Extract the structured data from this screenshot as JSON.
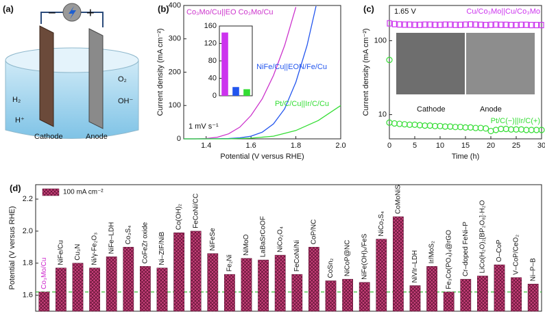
{
  "schematic": {
    "panel_label": "(a)",
    "minus": "−",
    "plus": "+",
    "h2": "H₂",
    "hplus": "H⁺",
    "o2": "O₂",
    "ohminus": "OH⁻",
    "cathode": "Cathode",
    "anode": "Anode"
  },
  "chart_data": [
    {
      "type": "line",
      "panel_label": "(b)",
      "xlabel": "Potential (V versus RHE)",
      "ylabel": "Current density (mA cm⁻²)",
      "xlim": [
        1.3,
        2.0
      ],
      "xticks": [
        1.4,
        1.6,
        1.8,
        {
          "value": 2.0,
          "label": "2.0"
        }
      ],
      "ylim": [
        0,
        400
      ],
      "yticks": [
        0,
        100,
        200,
        300,
        400
      ],
      "annotations": [
        "1 mV s⁻¹"
      ],
      "series": [
        {
          "name": "Co₃Mo/Cu||EO Co₃Mo/Cu",
          "color": "#cc33cc",
          "x": [
            1.3,
            1.35,
            1.4,
            1.45,
            1.5,
            1.55,
            1.6,
            1.65,
            1.7,
            1.75,
            1.8
          ],
          "values": [
            0,
            0,
            1,
            5,
            15,
            35,
            70,
            120,
            190,
            280,
            395
          ]
        },
        {
          "name": "NiFe/Cu||EON/Fe/Cu",
          "color": "#2255ee",
          "x": [
            1.3,
            1.4,
            1.5,
            1.55,
            1.6,
            1.65,
            1.7,
            1.75,
            1.8,
            1.85,
            1.89
          ],
          "values": [
            0,
            0,
            1,
            3,
            8,
            20,
            45,
            90,
            170,
            280,
            398
          ]
        },
        {
          "name": "Pt/C/Cu||Ir/C/Cu",
          "color": "#33dd33",
          "x": [
            1.3,
            1.5,
            1.6,
            1.7,
            1.8,
            1.9,
            2.0
          ],
          "values": [
            0,
            0,
            2,
            8,
            25,
            55,
            100
          ]
        }
      ]
    },
    {
      "type": "bar",
      "categories": [
        null,
        null,
        null
      ],
      "values": [
        145,
        20,
        15
      ],
      "colors": [
        "#cc33ee",
        "#2255ee",
        "#33dd33"
      ],
      "ylim": [
        0,
        160
      ],
      "yticks": [
        0,
        40,
        80,
        120,
        160
      ]
    },
    {
      "type": "scatter",
      "panel_label": "(c)",
      "xlabel": "Time (h)",
      "ylabel": "Current density (mA cm⁻²)",
      "log_y": true,
      "xlim": [
        0,
        30
      ],
      "xticks": [
        0,
        5,
        10,
        15,
        20,
        25,
        30
      ],
      "ylim": [
        4.7,
        300
      ],
      "yticks": [
        10,
        100
      ],
      "annotations": [
        "1.65 V",
        "Cathode",
        "Anode"
      ],
      "series": [
        {
          "name": "Cu/Co₃Mo||Cu/Co₃Mo",
          "color": "#cc33ee",
          "marker": "square",
          "x": [
            0,
            1,
            2,
            3,
            4,
            5,
            6,
            7,
            8,
            9,
            10,
            11,
            12,
            13,
            14,
            15,
            16,
            17,
            18,
            19,
            20,
            21,
            22,
            23,
            24,
            25,
            26,
            27,
            28,
            29,
            30
          ],
          "values": [
            172,
            168,
            166,
            165,
            165,
            164,
            164,
            165,
            165,
            164,
            164,
            165,
            165,
            164,
            164,
            165,
            166,
            165,
            164,
            163,
            164,
            165,
            164,
            164,
            163,
            163,
            164,
            164,
            163,
            163,
            163
          ]
        },
        {
          "name": "Pt/C(−)||Ir/C(+)",
          "color": "#33dd33",
          "marker": "circle",
          "x": [
            0,
            0,
            1,
            2,
            3,
            4,
            5,
            6,
            7,
            8,
            9,
            10,
            11,
            12,
            13,
            14,
            15,
            16,
            17,
            18,
            19,
            20,
            21,
            22,
            23,
            24,
            25,
            26,
            27,
            28,
            29,
            30
          ],
          "values": [
            55,
            7.8,
            7.6,
            7.5,
            7.4,
            7.3,
            7.3,
            7.2,
            7.1,
            7.1,
            7.0,
            7.0,
            6.9,
            6.9,
            6.8,
            6.8,
            6.7,
            6.7,
            6.6,
            6.6,
            6.5,
            6.0,
            6.2,
            6.4,
            6.4,
            6.3,
            6.3,
            6.3,
            6.2,
            6.2,
            6.2,
            6.2
          ]
        }
      ]
    },
    {
      "type": "bar",
      "panel_label": "(d)",
      "ylabel": "Potential (V versus RHE)",
      "legend": "100 mA cm⁻²",
      "color": "#c8407a",
      "hatch": true,
      "highlight": {
        "index": 0,
        "color": "#cc22cc"
      },
      "ref_line": 1.62,
      "ref_color": "#33bb33",
      "ylim": [
        1.5,
        2.29
      ],
      "yticks": [
        1.6,
        1.8,
        {
          "value": 2.0,
          "label": "2.0"
        },
        2.2
      ],
      "categories": [
        "Co₃Mo/Cu",
        "NiFe/Cu",
        "Cu₃N",
        "Ni/γ-Fe₂O₃",
        "NiFe–LDH",
        "Co₃S₄",
        "CoFeZr oxide",
        "Ni–ZIF/NiB",
        "Co(OH)₂",
        "FeCoNi/CC",
        "NiFeSe",
        "Fe₂Ni",
        "NiMoO",
        "LaBaSrCoOF",
        "NiCo₂O₄",
        "FeCoNi/Ni",
        "CoP/NC",
        "CoSn₂",
        "NiCoP@NC",
        "NiFe(OH)ₓ/FeS",
        "NiCo₂S₄",
        "CoMoNiS",
        "NiVIr–LDH",
        "Ir/MoS₂",
        "Fe₃Co(PO₄)₄@rGO",
        "Cr–doped FeNi–P",
        "LiCo(H₂O)₂[BP₂O₈]·H₂O",
        "O–CoP",
        "V–CoP/CeO₂",
        "Ni–P–B"
      ],
      "values": [
        1.62,
        1.77,
        1.8,
        1.77,
        1.84,
        1.9,
        1.78,
        1.77,
        1.99,
        2.0,
        1.86,
        1.73,
        1.83,
        1.82,
        1.85,
        1.73,
        1.9,
        1.69,
        1.7,
        1.68,
        1.95,
        2.09,
        1.66,
        1.78,
        1.62,
        1.7,
        1.72,
        1.79,
        1.71,
        1.67
      ]
    }
  ]
}
